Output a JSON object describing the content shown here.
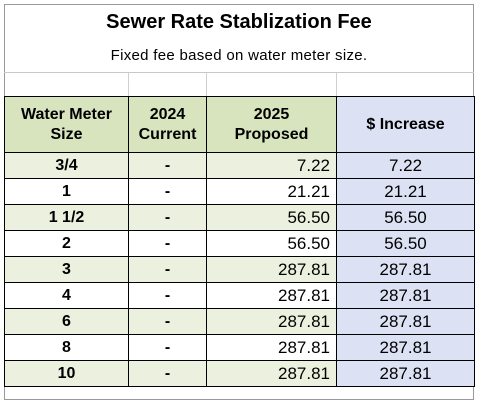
{
  "title": "Sewer Rate Stablization Fee",
  "subtitle": "Fixed  fee based on water meter size.",
  "columns": {
    "size": [
      "Water Meter",
      "Size"
    ],
    "current": [
      "2024",
      "Current"
    ],
    "proposed": [
      "2025",
      "Proposed"
    ],
    "increase": "$ Increase"
  },
  "rows": [
    {
      "size": "3/4",
      "current": "-",
      "proposed": "7.22",
      "increase": "7.22"
    },
    {
      "size": "1",
      "current": "-",
      "proposed": "21.21",
      "increase": "21.21"
    },
    {
      "size": "1 1/2",
      "current": "-",
      "proposed": "56.50",
      "increase": "56.50"
    },
    {
      "size": "2",
      "current": "-",
      "proposed": "56.50",
      "increase": "56.50"
    },
    {
      "size": "3",
      "current": "-",
      "proposed": "287.81",
      "increase": "287.81"
    },
    {
      "size": "4",
      "current": "-",
      "proposed": "287.81",
      "increase": "287.81"
    },
    {
      "size": "6",
      "current": "-",
      "proposed": "287.81",
      "increase": "287.81"
    },
    {
      "size": "8",
      "current": "-",
      "proposed": "287.81",
      "increase": "287.81"
    },
    {
      "size": "10",
      "current": "-",
      "proposed": "287.81",
      "increase": "287.81"
    }
  ],
  "colors": {
    "header_green": "#d7e4bd",
    "row_green": "#ebf1de",
    "blue": "#dce1f4"
  }
}
